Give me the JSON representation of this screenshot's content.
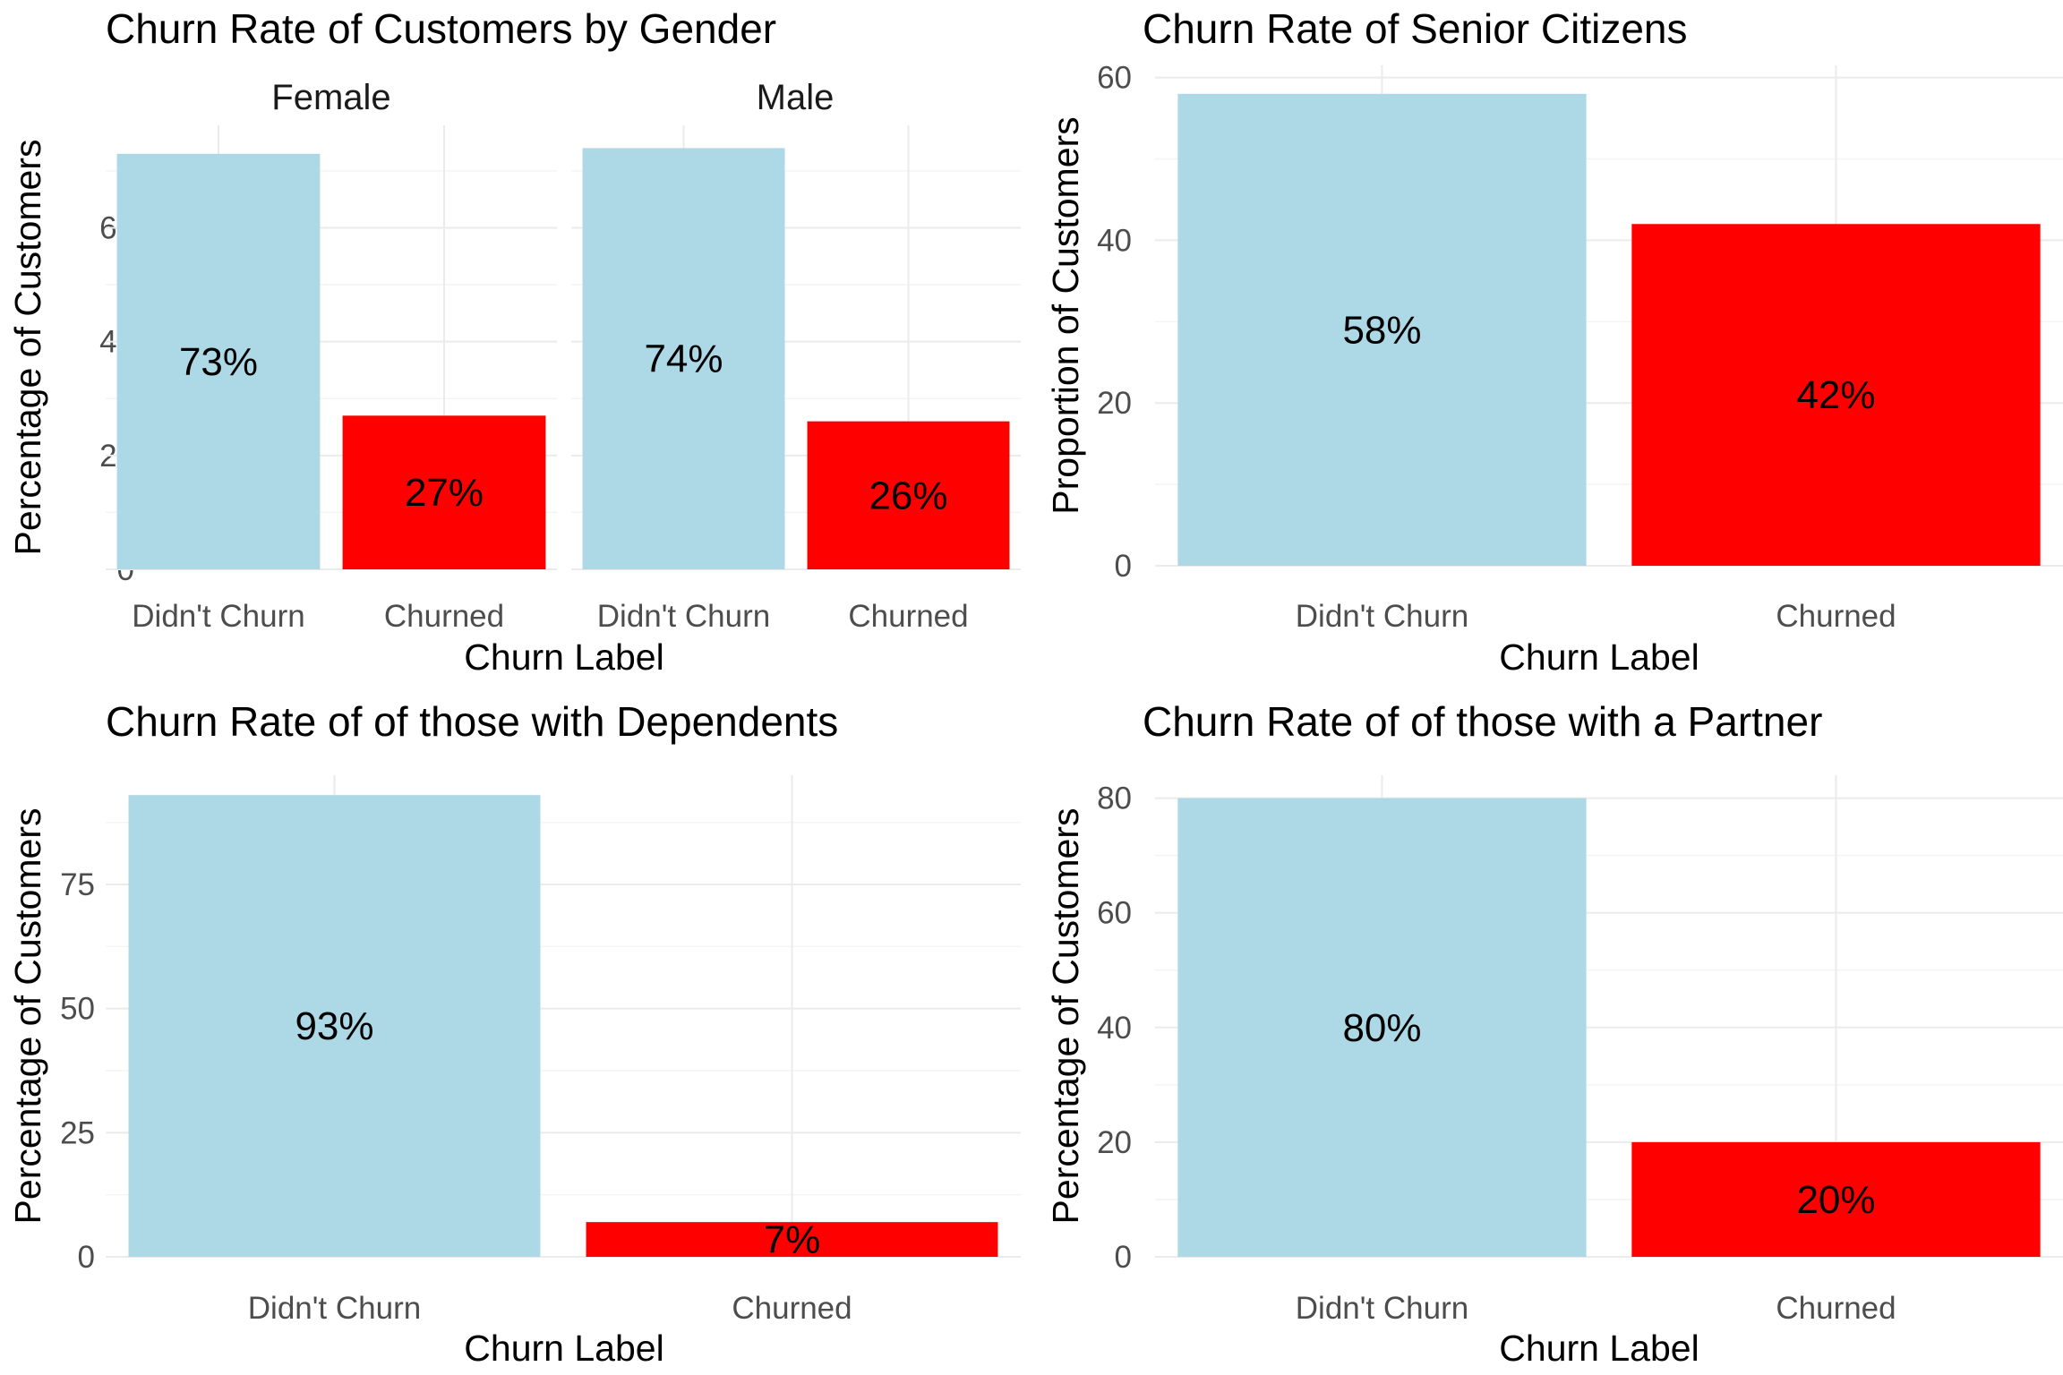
{
  "colors": {
    "didnt_churn": "#add8e6",
    "churned": "#ff0000"
  },
  "chart_data": [
    {
      "type": "bar",
      "title": "Churn Rate of Customers by Gender",
      "xlabel": "Churn Label",
      "ylabel": "Percentage of Customers",
      "ylim": [
        0,
        78
      ],
      "yticks": [
        "0",
        "20",
        "40",
        "60"
      ],
      "ytick_values": [
        0,
        20,
        40,
        60
      ],
      "grid": true,
      "legend": "none",
      "categories": [
        "Didn't Churn",
        "Churned"
      ],
      "facets": [
        {
          "name": "Female",
          "values": [
            73,
            27
          ],
          "labels": [
            "73%",
            "27%"
          ]
        },
        {
          "name": "Male",
          "values": [
            74,
            26
          ],
          "labels": [
            "74%",
            "26%"
          ]
        }
      ]
    },
    {
      "type": "bar",
      "title": "Churn Rate of Senior Citizens",
      "xlabel": "Churn Label",
      "ylabel": "Proportion of Customers",
      "ylim": [
        0,
        61.5
      ],
      "yticks": [
        "0",
        "20",
        "40",
        "60"
      ],
      "ytick_values": [
        0,
        20,
        40,
        60
      ],
      "grid": true,
      "legend": "none",
      "categories": [
        "Didn't Churn",
        "Churned"
      ],
      "values": [
        58,
        42
      ],
      "labels": [
        "58%",
        "42%"
      ]
    },
    {
      "type": "bar",
      "title": "Churn Rate of of those with Dependents",
      "xlabel": "Churn Label",
      "ylabel": "Percentage of Customers",
      "ylim": [
        0,
        97
      ],
      "yticks": [
        "0",
        "25",
        "50",
        "75"
      ],
      "ytick_values": [
        0,
        25,
        50,
        75
      ],
      "grid": true,
      "legend": "none",
      "categories": [
        "Didn't Churn",
        "Churned"
      ],
      "values": [
        93,
        7
      ],
      "labels": [
        "93%",
        "7%"
      ]
    },
    {
      "type": "bar",
      "title": "Churn Rate of of those with a Partner",
      "xlabel": "Churn Label",
      "ylabel": "Percentage of Customers",
      "ylim": [
        0,
        84
      ],
      "yticks": [
        "0",
        "20",
        "40",
        "60",
        "80"
      ],
      "ytick_values": [
        0,
        20,
        40,
        60,
        80
      ],
      "grid": true,
      "legend": "none",
      "categories": [
        "Didn't Churn",
        "Churned"
      ],
      "values": [
        80,
        20
      ],
      "labels": [
        "80%",
        "20%"
      ]
    }
  ]
}
